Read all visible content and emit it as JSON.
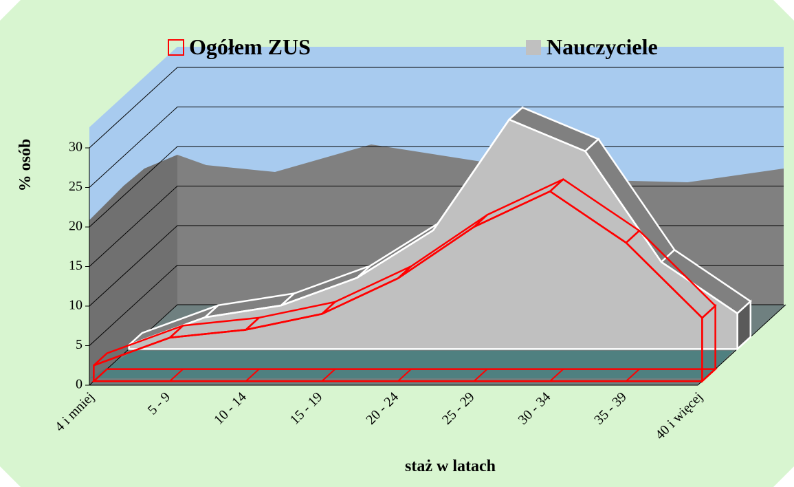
{
  "chart_data": {
    "type": "area3d",
    "y_label": "% osób",
    "x_label": "staż w latach",
    "categories": [
      "4 i mniej",
      "5 - 9",
      "10 - 14",
      "15 - 19",
      "20 - 24",
      "25 - 29",
      "30 - 34",
      "35 - 39",
      "40 i więcej"
    ],
    "series": [
      {
        "name": "Ogółem ZUS",
        "color": "#ff0000",
        "values": [
          2,
          5.5,
          6.5,
          8.5,
          13,
          19.5,
          24,
          17.5,
          8
        ]
      },
      {
        "name": "Nauczyciele",
        "color": "#c0c0c0",
        "values": [
          0.5,
          4,
          5.5,
          9,
          15,
          29,
          25,
          11,
          4.5
        ]
      }
    ],
    "ylim": [
      0,
      30
    ],
    "yticks": [
      0,
      5,
      10,
      15,
      20,
      25,
      30
    ],
    "grid": true,
    "legend": "top"
  }
}
